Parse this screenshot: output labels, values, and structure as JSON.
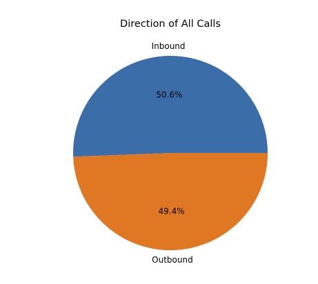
{
  "chart_data": {
    "type": "pie",
    "title": "Direction of All Calls",
    "slices": [
      {
        "label": "Inbound",
        "value": 50.6,
        "pct_label": "50.6%",
        "color": "#3b6ea9"
      },
      {
        "label": "Outbound",
        "value": 49.4,
        "pct_label": "49.4%",
        "color": "#e07722"
      }
    ],
    "start_angle_deg": 0,
    "direction": "counterclockwise",
    "legend": "none"
  }
}
